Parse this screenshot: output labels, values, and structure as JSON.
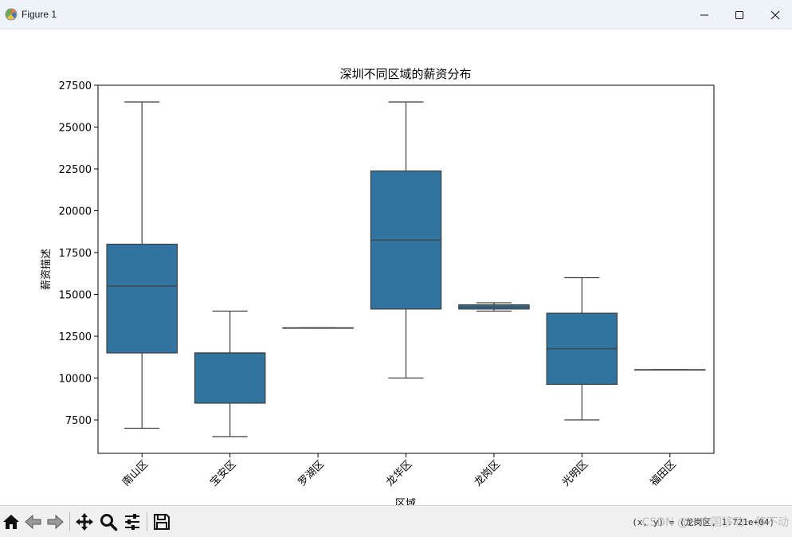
{
  "window": {
    "title": "Figure 1",
    "minimize_icon": "minimize-icon",
    "maximize_icon": "maximize-icon",
    "close_icon": "close-icon"
  },
  "toolbar": {
    "icons": [
      "home-icon",
      "back-arrow-icon",
      "forward-arrow-icon",
      "pan-move-icon",
      "zoom-magnifier-icon",
      "configure-subplots-icon",
      "save-floppy-icon"
    ],
    "coordinate_readout": "(x, y) = (龙岗区, 1.721e+04)",
    "watermark": "CSDN @一个国移动一移不动"
  },
  "colors": {
    "box_fill": "#3274a1",
    "line": "#3f3f3f",
    "axes": "#000000"
  },
  "chart_data": {
    "type": "box",
    "title": "深圳不同区域的薪资分布",
    "xlabel": "区域",
    "ylabel": "薪资描述",
    "categories": [
      "南山区",
      "宝安区",
      "罗湖区",
      "龙华区",
      "龙岗区",
      "光明区",
      "福田区"
    ],
    "boxes": [
      {
        "min": 7000,
        "q1": 11500,
        "median": 15500,
        "q3": 18000,
        "max": 26500
      },
      {
        "min": 6500,
        "q1": 8500,
        "median": 11500,
        "q3": 11500,
        "max": 14000
      },
      {
        "min": 13000,
        "q1": 13000,
        "median": 13000,
        "q3": 13000,
        "max": 13000
      },
      {
        "min": 10000,
        "q1": 14125,
        "median": 18250,
        "q3": 22375,
        "max": 26500
      },
      {
        "min": 14000,
        "q1": 14125,
        "median": 14250,
        "q3": 14375,
        "max": 14500
      },
      {
        "min": 7500,
        "q1": 9625,
        "median": 11750,
        "q3": 13875,
        "max": 16000
      },
      {
        "min": 10500,
        "q1": 10500,
        "median": 10500,
        "q3": 10500,
        "max": 10500
      }
    ],
    "ylim": [
      5500,
      27500
    ],
    "yticks": [
      7500,
      10000,
      12500,
      15000,
      17500,
      20000,
      22500,
      25000,
      27500
    ],
    "grid": false
  }
}
